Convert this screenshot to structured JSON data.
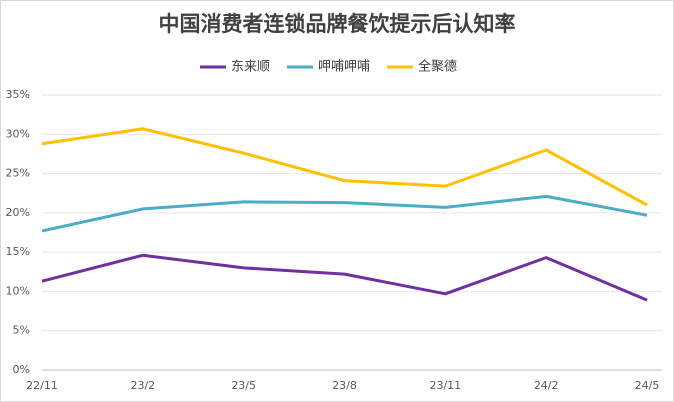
{
  "chart_data": {
    "type": "line",
    "title": "中国消费者连锁品牌餐饮提示后认知率",
    "categories": [
      "22/11",
      "23/2",
      "23/5",
      "23/8",
      "23/11",
      "24/2",
      "24/5"
    ],
    "series": [
      {
        "name": "东来顺",
        "color": "#7030a0",
        "values": [
          11.3,
          14.6,
          13.0,
          12.2,
          9.7,
          14.3,
          8.9
        ]
      },
      {
        "name": "呷哺呷哺",
        "color": "#4bacc6",
        "values": [
          17.7,
          20.5,
          21.4,
          21.3,
          20.7,
          22.1,
          19.7
        ]
      },
      {
        "name": "全聚德",
        "color": "#ffc000",
        "values": [
          28.8,
          30.7,
          27.6,
          24.1,
          23.4,
          28.0,
          21.0
        ]
      }
    ],
    "ylim": [
      0,
      35
    ],
    "yticks": [
      {
        "value": 0,
        "label": "0%"
      },
      {
        "value": 5,
        "label": "5%"
      },
      {
        "value": 10,
        "label": "10%"
      },
      {
        "value": 15,
        "label": "15%"
      },
      {
        "value": 20,
        "label": "20%"
      },
      {
        "value": 25,
        "label": "25%"
      },
      {
        "value": 30,
        "label": "30%"
      },
      {
        "value": 35,
        "label": "35%"
      }
    ],
    "grid": true,
    "legend": "top"
  }
}
